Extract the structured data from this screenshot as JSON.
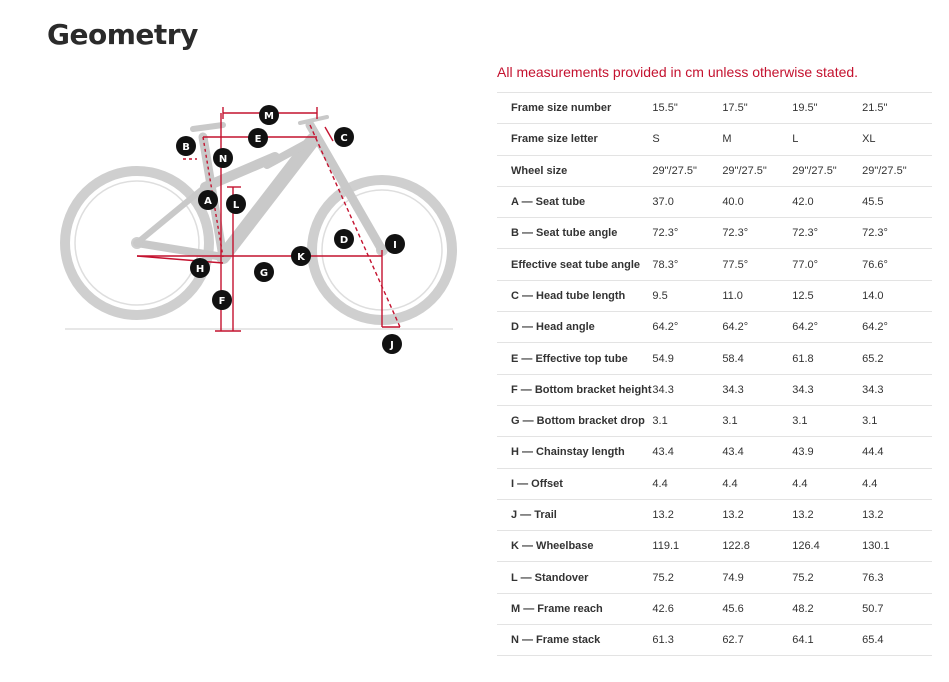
{
  "title": "Geometry",
  "note": "All measurements provided in cm unless otherwise stated.",
  "diagram_labels": [
    "M",
    "E",
    "C",
    "B",
    "N",
    "A",
    "L",
    "D",
    "I",
    "K",
    "H",
    "G",
    "F",
    "J"
  ],
  "colors": {
    "accent": "#c4122f",
    "frame": "#c9c9c9",
    "badge": "#111111"
  },
  "table": {
    "rows": [
      {
        "label": "Frame size number",
        "values": [
          "15.5\"",
          "17.5\"",
          "19.5\"",
          "21.5\""
        ]
      },
      {
        "label": "Frame size letter",
        "values": [
          "S",
          "M",
          "L",
          "XL"
        ]
      },
      {
        "label": "Wheel size",
        "values": [
          "29\"/27.5\"",
          "29\"/27.5\"",
          "29\"/27.5\"",
          "29\"/27.5\""
        ]
      },
      {
        "label": "A — Seat tube",
        "values": [
          "37.0",
          "40.0",
          "42.0",
          "45.5"
        ]
      },
      {
        "label": "B — Seat tube angle",
        "values": [
          "72.3°",
          "72.3°",
          "72.3°",
          "72.3°"
        ]
      },
      {
        "label": "Effective seat tube angle",
        "values": [
          "78.3°",
          "77.5°",
          "77.0°",
          "76.6°"
        ]
      },
      {
        "label": "C — Head tube length",
        "values": [
          "9.5",
          "11.0",
          "12.5",
          "14.0"
        ]
      },
      {
        "label": "D — Head angle",
        "values": [
          "64.2°",
          "64.2°",
          "64.2°",
          "64.2°"
        ]
      },
      {
        "label": "E — Effective top tube",
        "values": [
          "54.9",
          "58.4",
          "61.8",
          "65.2"
        ]
      },
      {
        "label": "F — Bottom bracket height",
        "values": [
          "34.3",
          "34.3",
          "34.3",
          "34.3"
        ]
      },
      {
        "label": "G — Bottom bracket drop",
        "values": [
          "3.1",
          "3.1",
          "3.1",
          "3.1"
        ]
      },
      {
        "label": "H — Chainstay length",
        "values": [
          "43.4",
          "43.4",
          "43.9",
          "44.4"
        ]
      },
      {
        "label": "I — Offset",
        "values": [
          "4.4",
          "4.4",
          "4.4",
          "4.4"
        ]
      },
      {
        "label": "J — Trail",
        "values": [
          "13.2",
          "13.2",
          "13.2",
          "13.2"
        ]
      },
      {
        "label": "K — Wheelbase",
        "values": [
          "119.1",
          "122.8",
          "126.4",
          "130.1"
        ]
      },
      {
        "label": "L — Standover",
        "values": [
          "75.2",
          "74.9",
          "75.2",
          "76.3"
        ]
      },
      {
        "label": "M — Frame reach",
        "values": [
          "42.6",
          "45.6",
          "48.2",
          "50.7"
        ]
      },
      {
        "label": "N — Frame stack",
        "values": [
          "61.3",
          "62.7",
          "64.1",
          "65.4"
        ]
      }
    ]
  }
}
